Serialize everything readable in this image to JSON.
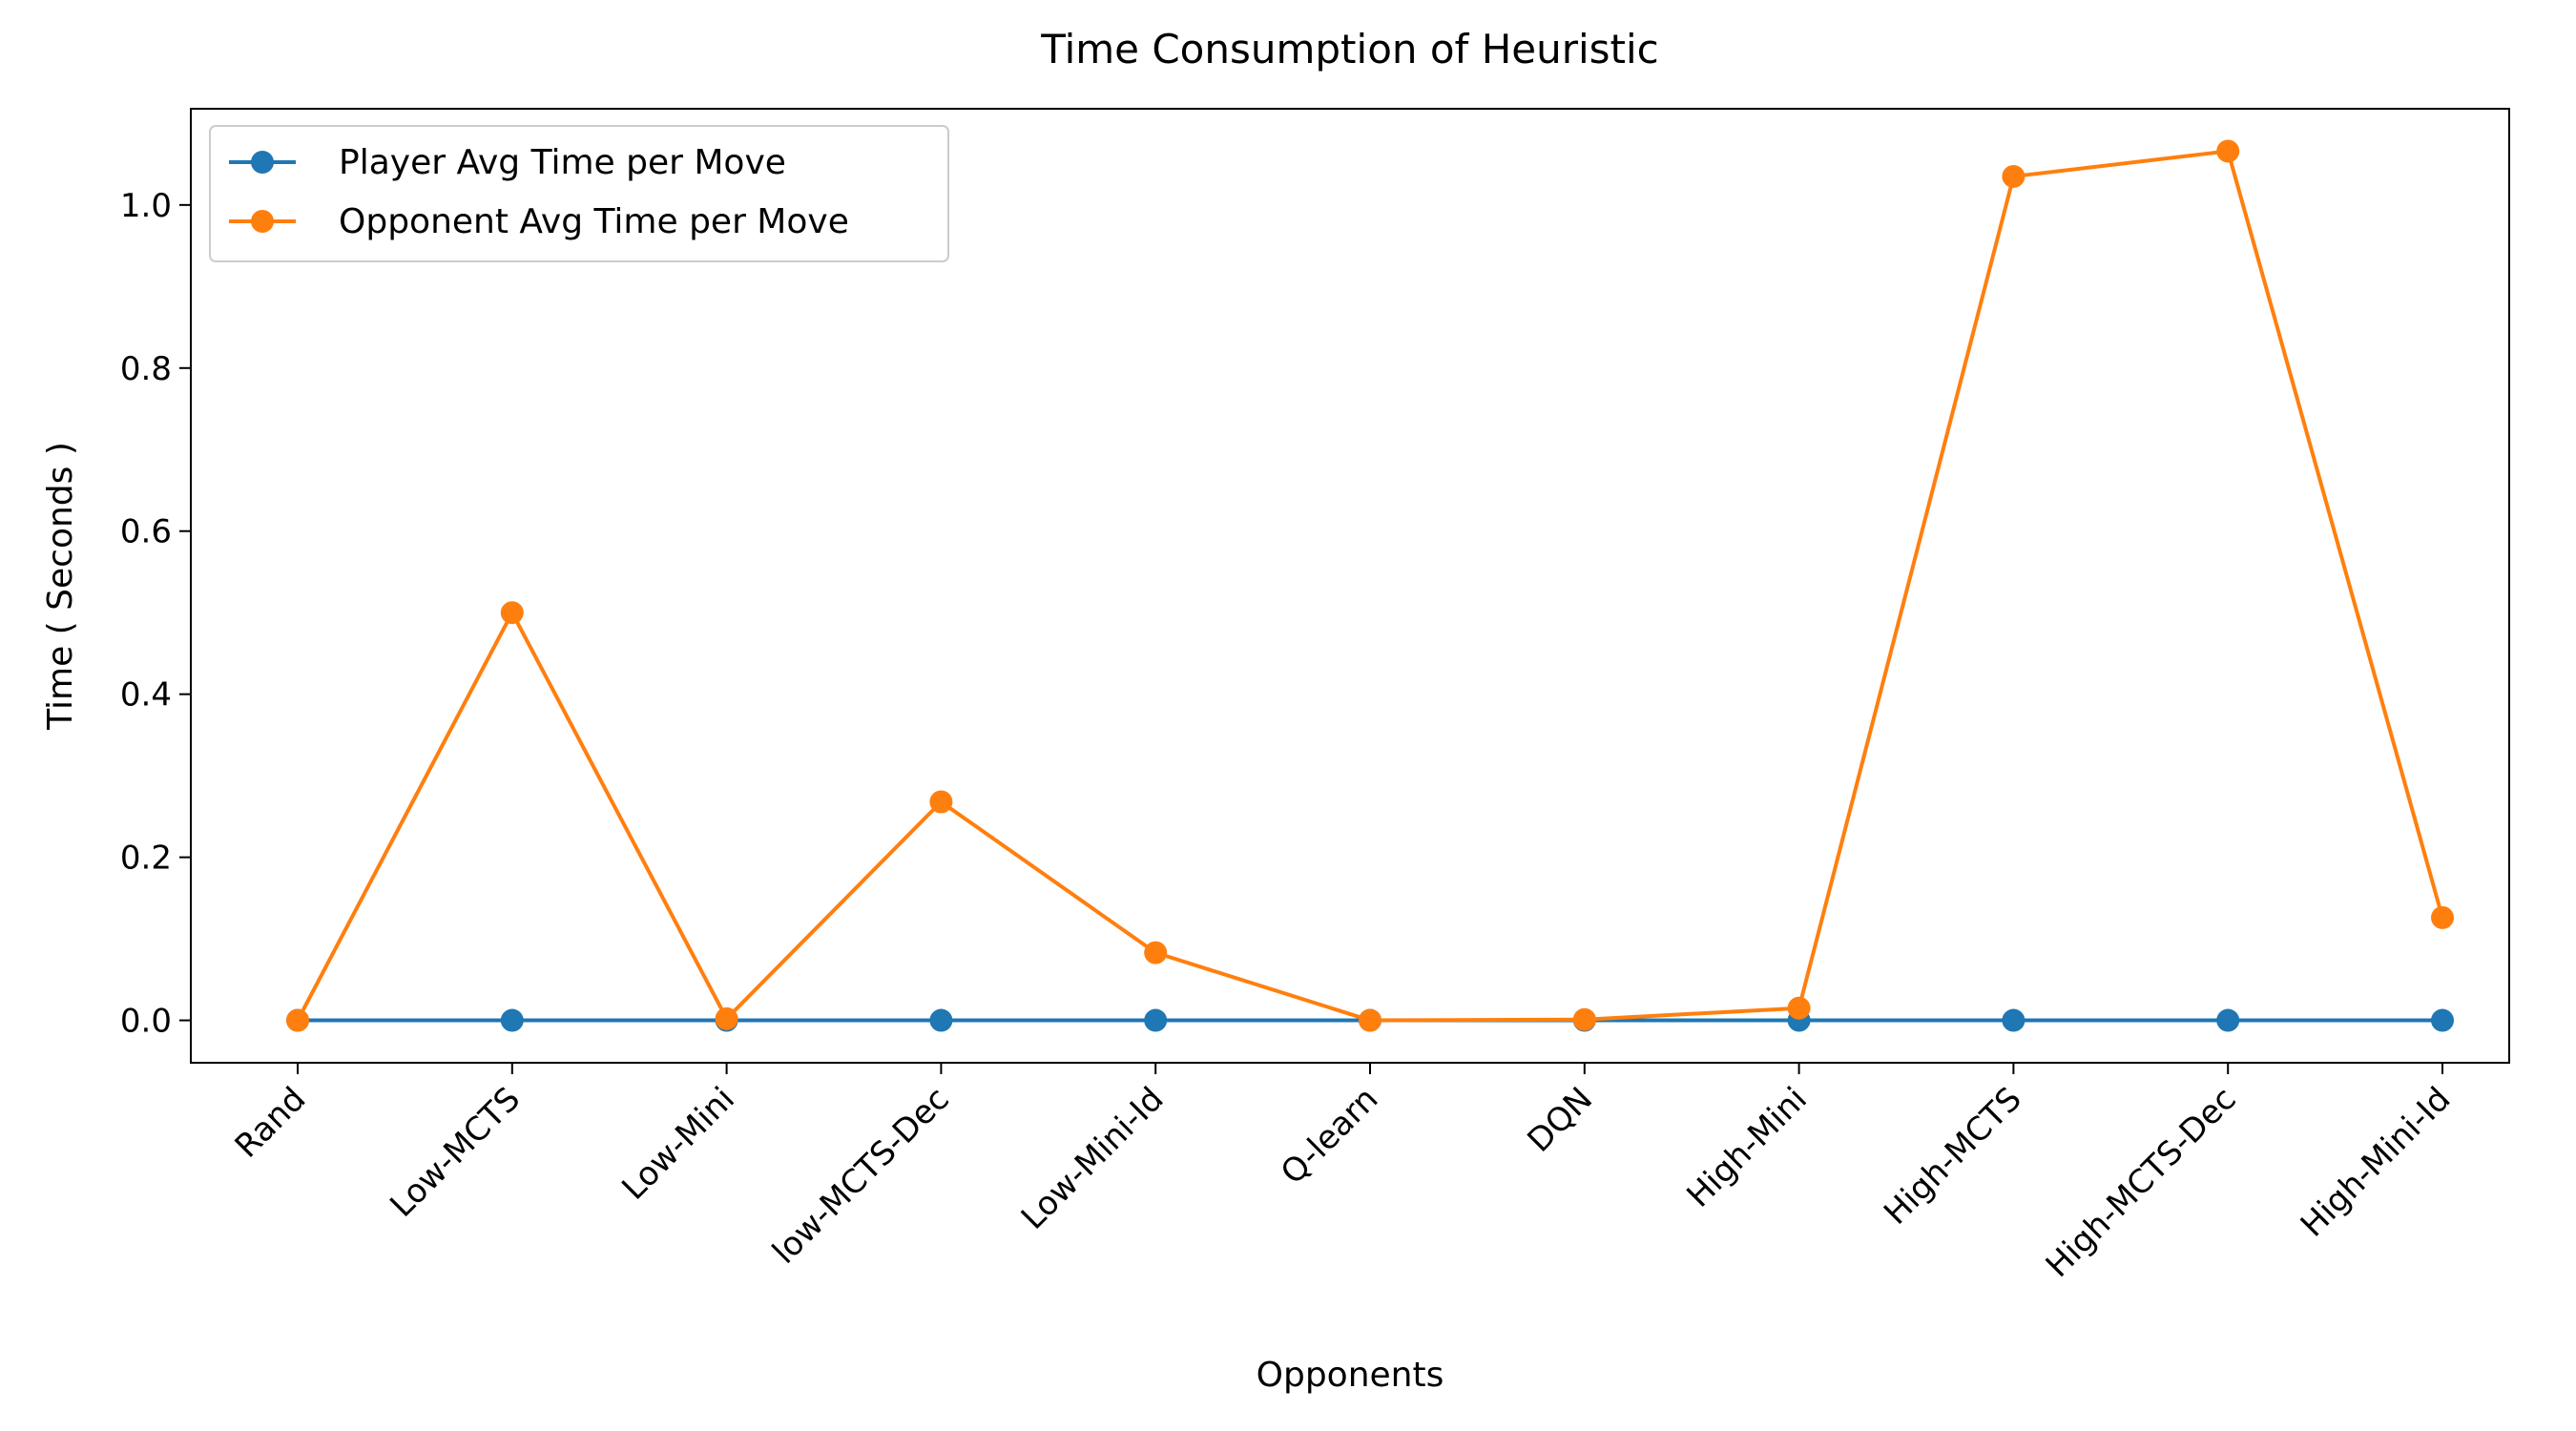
{
  "chart_data": {
    "type": "line",
    "title": "Time Consumption of Heuristic",
    "xlabel": "Opponents",
    "ylabel": "Time ( Seconds )",
    "categories": [
      "Rand",
      "Low-MCTS",
      "Low-Mini",
      "low-MCTS-Dec",
      "Low-Mini-Id",
      "Q-learn",
      "DQN",
      "High-Mini",
      "High-MCTS",
      "High-MCTS-Dec",
      "High-Mini-Id"
    ],
    "series": [
      {
        "name": "Player Avg Time per Move",
        "color": "#1f77b4",
        "values": [
          0.0,
          0.0,
          0.0,
          0.0,
          0.0,
          0.0,
          0.0,
          0.0,
          0.0,
          0.0,
          0.0
        ]
      },
      {
        "name": "Opponent Avg Time per Move",
        "color": "#ff7f0e",
        "values": [
          0.0,
          0.5,
          0.002,
          0.268,
          0.083,
          0.0,
          0.001,
          0.015,
          1.035,
          1.066,
          0.126
        ]
      }
    ],
    "ylim": [
      -0.052,
      1.118
    ],
    "yticks": [
      0.0,
      0.2,
      0.4,
      0.6,
      0.8,
      1.0
    ],
    "ytick_labels": [
      "0.0",
      "0.2",
      "0.4",
      "0.6",
      "0.8",
      "1.0"
    ],
    "grid": false,
    "legend_position": "top-left"
  }
}
